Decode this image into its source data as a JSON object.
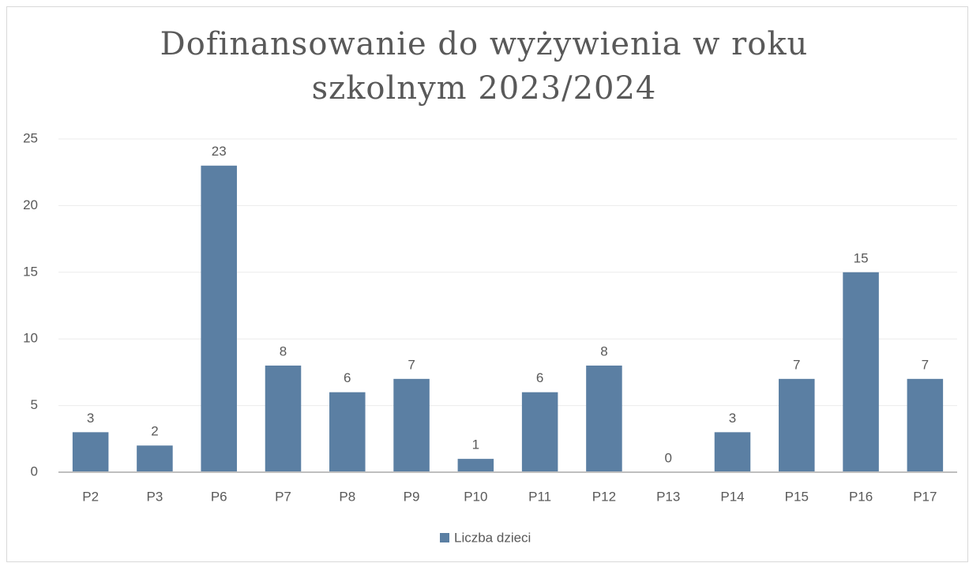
{
  "chart_data": {
    "type": "bar",
    "title": "Dofinansowanie do wyżywienia w roku szkolnym 2023/2024",
    "categories": [
      "P2",
      "P3",
      "P6",
      "P7",
      "P8",
      "P9",
      "P10",
      "P11",
      "P12",
      "P13",
      "P14",
      "P15",
      "P16",
      "P17"
    ],
    "series": [
      {
        "name": "Liczba dzieci",
        "color": "#5b7fa3",
        "values": [
          3,
          2,
          23,
          8,
          6,
          7,
          1,
          6,
          8,
          0,
          3,
          7,
          15,
          7
        ]
      }
    ],
    "ylim": [
      0,
      25
    ],
    "yticks": [
      0,
      5,
      10,
      15,
      20,
      25
    ],
    "grid": true,
    "legend": "bottom"
  }
}
